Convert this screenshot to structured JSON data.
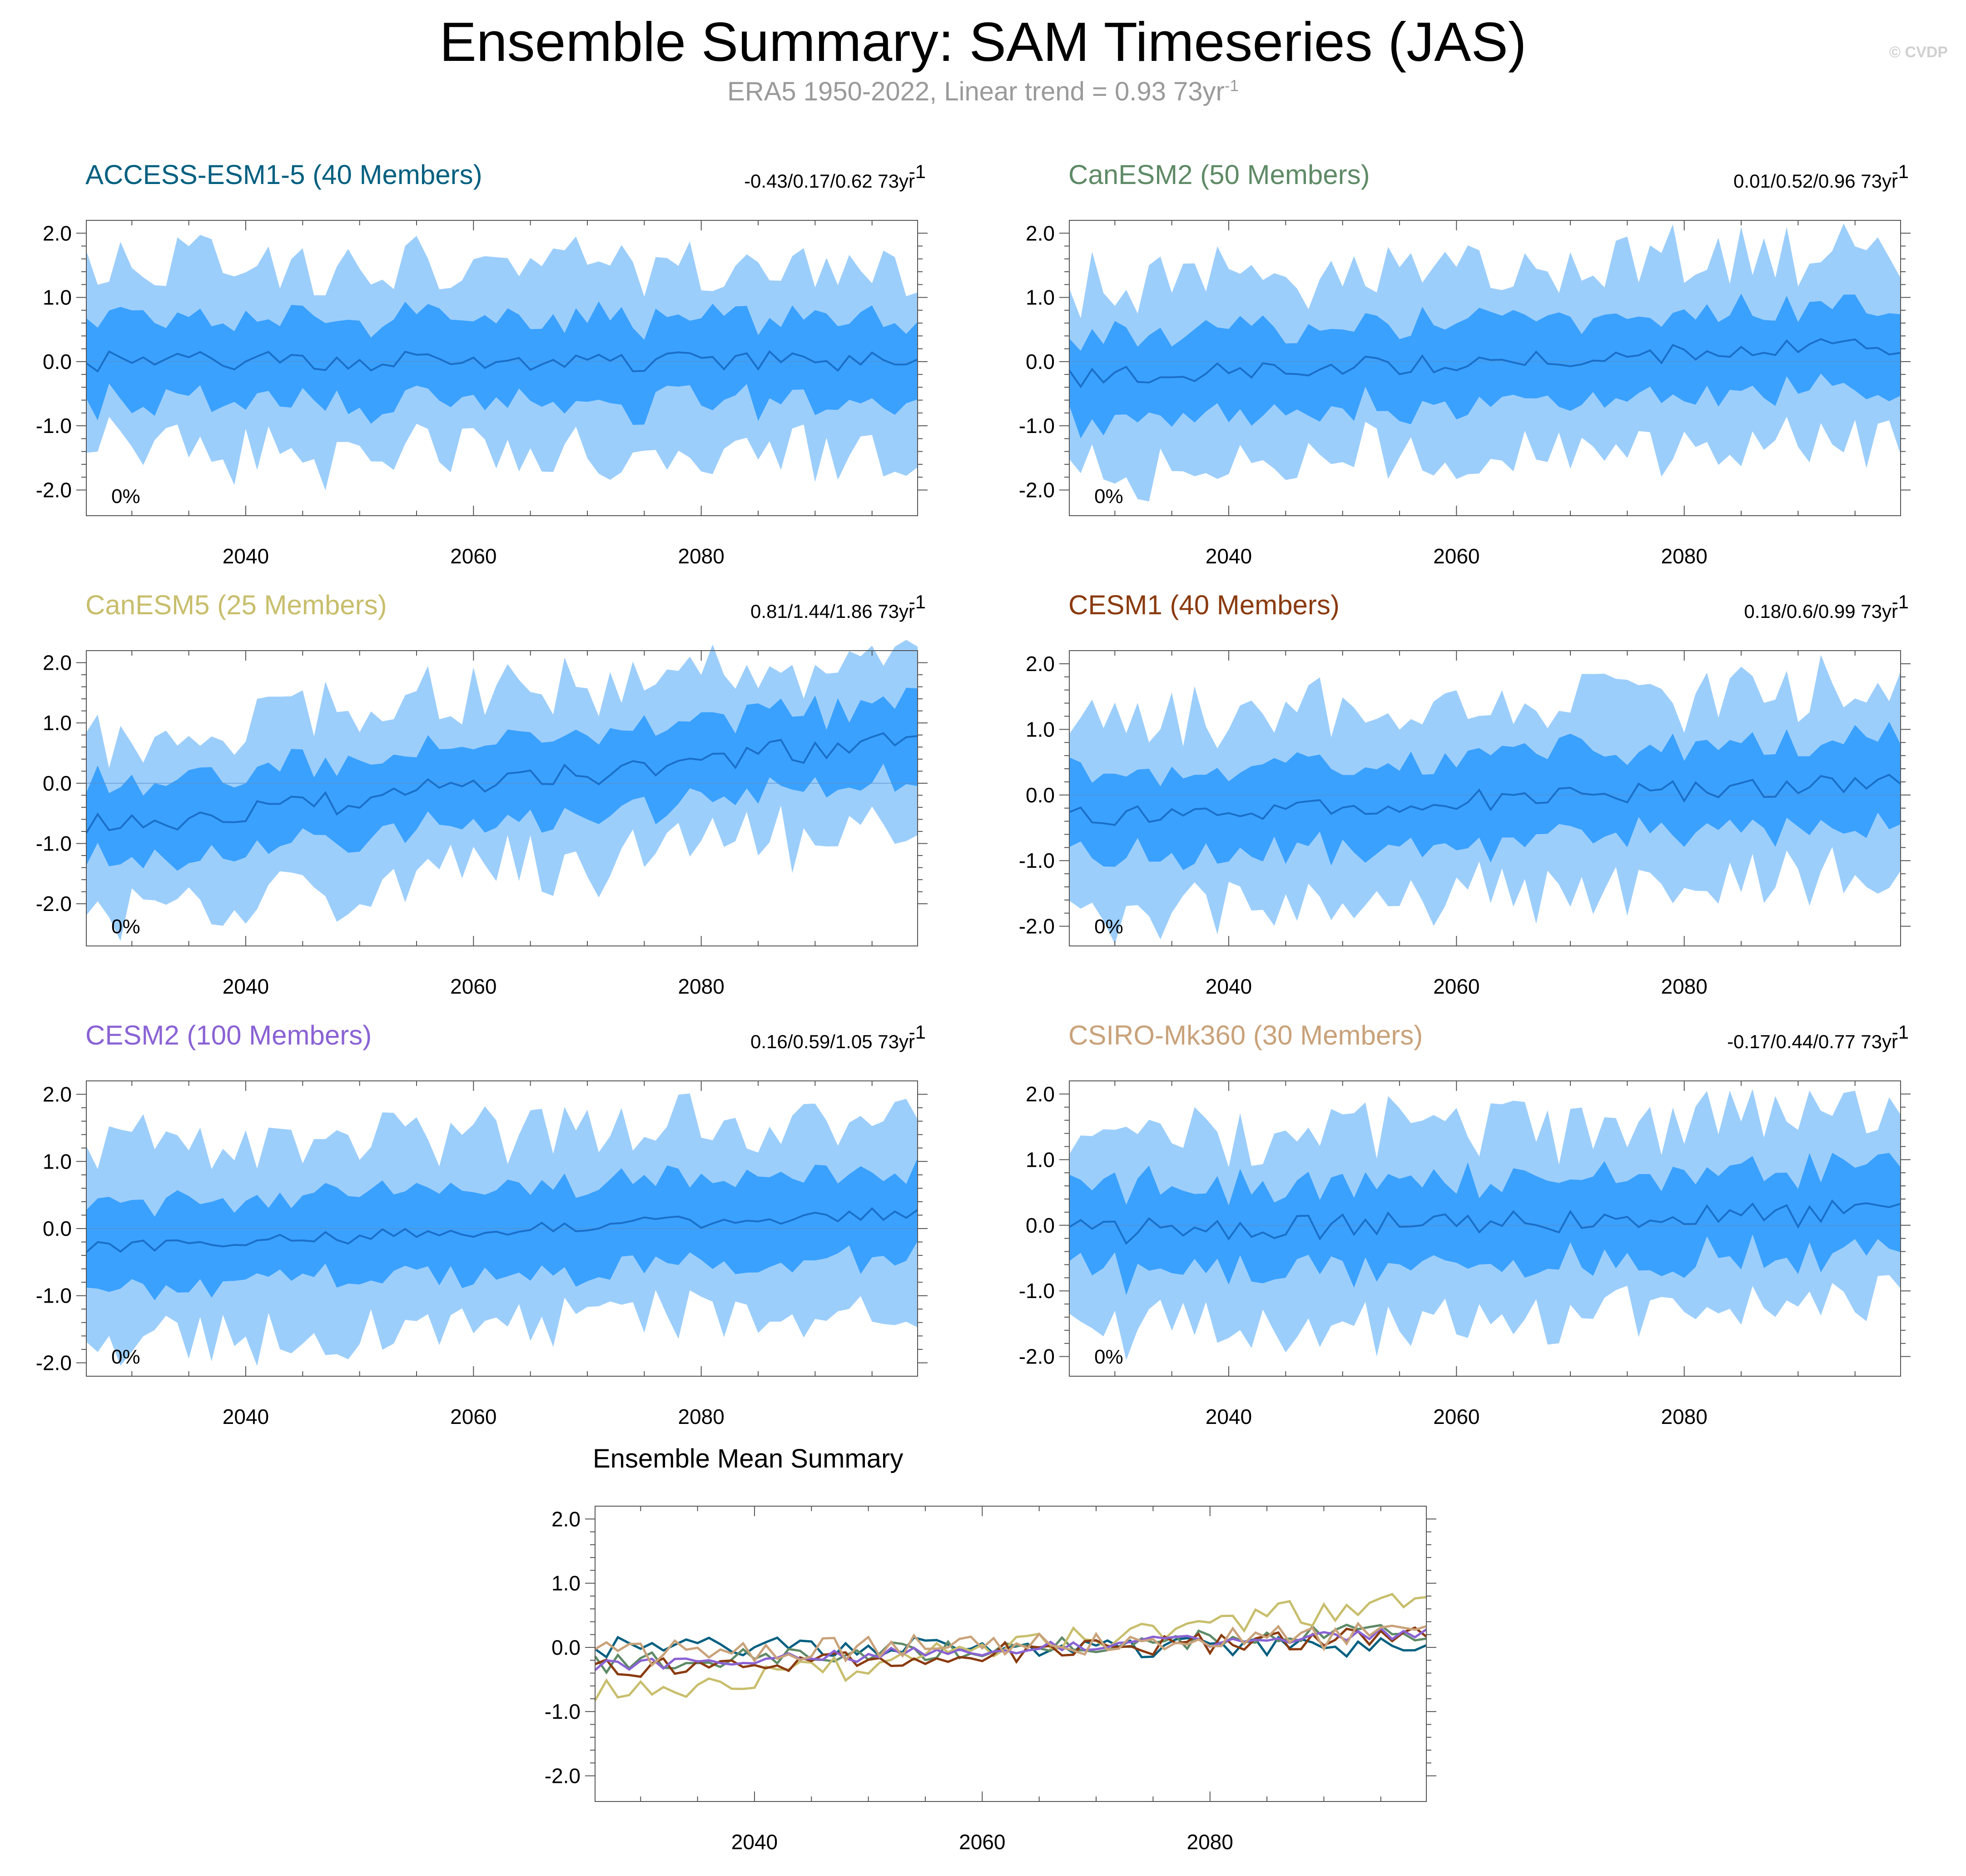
{
  "header": {
    "title": "Ensemble Summary: SAM Timeseries (JAS)",
    "subtitle_prefix": "ERA5 1950-2022, Linear trend = 0.93 73yr",
    "subtitle_sup": "-1",
    "credit": "© CVDP"
  },
  "chart_data": [
    {
      "type": "area",
      "title": "ACCESS-ESM1-5 (40 Members)",
      "title_color": "#005f80",
      "stats": "-0.43/0.17/0.62 73yr",
      "stats_sup": "-1",
      "pct_label": "0%",
      "xlim": [
        2026,
        2099
      ],
      "ylim": [
        -2.4,
        2.2
      ],
      "xticks": [
        2040,
        2060,
        2080
      ],
      "yticks": [
        2.0,
        1.0,
        0.0,
        -1.0,
        -2.0
      ],
      "ytick_labels": [
        "2.0",
        "1.0",
        "0.0",
        "-1.0",
        "-2.0"
      ],
      "start_year": 2026,
      "end_year": 2099,
      "mean_trend": [
        0.0,
        0.0
      ],
      "spread_inner": 0.62,
      "spread_outer": 1.45,
      "noise": 0.16,
      "colors": {
        "outer": "#9ccefc",
        "inner": "#3aa1ff",
        "mean": "#1a6fc8"
      },
      "seed": 1
    },
    {
      "type": "area",
      "title": "CanESM2 (50 Members)",
      "title_color": "#5e8a66",
      "stats": "0.01/0.52/0.96 73yr",
      "stats_sup": "-1",
      "pct_label": "0%",
      "xlim": [
        2026,
        2099
      ],
      "ylim": [
        -2.4,
        2.2
      ],
      "xticks": [
        2040,
        2060,
        2080
      ],
      "yticks": [
        2.0,
        1.0,
        0.0,
        -1.0,
        -2.0
      ],
      "ytick_labels": [
        "2.0",
        "1.0",
        "0.0",
        "-1.0",
        "-2.0"
      ],
      "start_year": 2026,
      "end_year": 2099,
      "mean_trend": [
        -0.25,
        0.25
      ],
      "spread_inner": 0.62,
      "spread_outer": 1.45,
      "noise": 0.15,
      "colors": {
        "outer": "#9ccefc",
        "inner": "#3aa1ff",
        "mean": "#1a6fc8"
      },
      "seed": 2
    },
    {
      "type": "area",
      "title": "CanESM5 (25 Members)",
      "title_color": "#c8be6c",
      "stats": "0.81/1.44/1.86 73yr",
      "stats_sup": "-1",
      "pct_label": "0%",
      "xlim": [
        2026,
        2099
      ],
      "ylim": [
        -2.7,
        2.2
      ],
      "xticks": [
        2040,
        2060,
        2080
      ],
      "yticks": [
        2.0,
        1.0,
        0.0,
        -1.0,
        -2.0
      ],
      "ytick_labels": [
        "2.0",
        "1.0",
        "0.0",
        "-1.0",
        "-2.0"
      ],
      "start_year": 2026,
      "end_year": 2099,
      "mean_trend": [
        -0.75,
        0.75
      ],
      "spread_inner": 0.62,
      "spread_outer": 1.45,
      "noise": 0.22,
      "colors": {
        "outer": "#9ccefc",
        "inner": "#3aa1ff",
        "mean": "#1a6fc8"
      },
      "seed": 3
    },
    {
      "type": "area",
      "title": "CESM1 (40 Members)",
      "title_color": "#8a3a0e",
      "stats": "0.18/0.6/0.99 73yr",
      "stats_sup": "-1",
      "pct_label": "0%",
      "xlim": [
        2026,
        2099
      ],
      "ylim": [
        -2.3,
        2.2
      ],
      "xticks": [
        2040,
        2060,
        2080
      ],
      "yticks": [
        2.0,
        1.0,
        0.0,
        -1.0,
        -2.0
      ],
      "ytick_labels": [
        "2.0",
        "1.0",
        "0.0",
        "-1.0",
        "-2.0"
      ],
      "start_year": 2026,
      "end_year": 2099,
      "mean_trend": [
        -0.35,
        0.2
      ],
      "spread_inner": 0.62,
      "spread_outer": 1.45,
      "noise": 0.16,
      "colors": {
        "outer": "#9ccefc",
        "inner": "#3aa1ff",
        "mean": "#1a6fc8"
      },
      "seed": 4
    },
    {
      "type": "area",
      "title": "CESM2 (100 Members)",
      "title_color": "#8a62d4",
      "stats": "0.16/0.59/1.05 73yr",
      "stats_sup": "-1",
      "pct_label": "0%",
      "xlim": [
        2026,
        2099
      ],
      "ylim": [
        -2.2,
        2.2
      ],
      "xticks": [
        2040,
        2060,
        2080
      ],
      "yticks": [
        2.0,
        1.0,
        0.0,
        -1.0,
        -2.0
      ],
      "ytick_labels": [
        "2.0",
        "1.0",
        "0.0",
        "-1.0",
        "-2.0"
      ],
      "start_year": 2026,
      "end_year": 2099,
      "mean_trend": [
        -0.3,
        0.25
      ],
      "spread_inner": 0.62,
      "spread_outer": 1.45,
      "noise": 0.1,
      "colors": {
        "outer": "#9ccefc",
        "inner": "#3aa1ff",
        "mean": "#1a6fc8"
      },
      "seed": 5
    },
    {
      "type": "area",
      "title": "CSIRO-Mk360 (30 Members)",
      "title_color": "#c9a27a",
      "stats": "-0.17/0.44/0.77 73yr",
      "stats_sup": "-1",
      "pct_label": "0%",
      "xlim": [
        2026,
        2099
      ],
      "ylim": [
        -2.3,
        2.2
      ],
      "xticks": [
        2040,
        2060,
        2080
      ],
      "yticks": [
        2.0,
        1.0,
        0.0,
        -1.0,
        -2.0
      ],
      "ytick_labels": [
        "2.0",
        "1.0",
        "0.0",
        "-1.0",
        "-2.0"
      ],
      "start_year": 2026,
      "end_year": 2099,
      "mean_trend": [
        -0.1,
        0.2
      ],
      "spread_inner": 0.62,
      "spread_outer": 1.45,
      "noise": 0.2,
      "colors": {
        "outer": "#9ccefc",
        "inner": "#3aa1ff",
        "mean": "#1a6fc8"
      },
      "seed": 6
    },
    {
      "type": "line",
      "title": "Ensemble Mean Summary",
      "xlim": [
        2026,
        2099
      ],
      "ylim": [
        -2.4,
        2.2
      ],
      "xticks": [
        2040,
        2060,
        2080
      ],
      "yticks": [
        2.0,
        1.0,
        0.0,
        -1.0,
        -2.0
      ],
      "ytick_labels": [
        "2.0",
        "1.0",
        "0.0",
        "-1.0",
        "-2.0"
      ],
      "start_year": 2026,
      "end_year": 2099,
      "series": [
        {
          "name": "ACCESS-ESM1-5",
          "color": "#005f80",
          "trend": [
            0.0,
            0.0
          ],
          "noise": 0.16,
          "seed": 1
        },
        {
          "name": "CanESM2",
          "color": "#5e8a66",
          "trend": [
            -0.25,
            0.25
          ],
          "noise": 0.15,
          "seed": 2
        },
        {
          "name": "CanESM5",
          "color": "#c8be6c",
          "trend": [
            -0.75,
            0.75
          ],
          "noise": 0.22,
          "seed": 3
        },
        {
          "name": "CESM1",
          "color": "#8a3a0e",
          "trend": [
            -0.35,
            0.2
          ],
          "noise": 0.16,
          "seed": 4
        },
        {
          "name": "CESM2",
          "color": "#8a62d4",
          "trend": [
            -0.3,
            0.25
          ],
          "noise": 0.1,
          "seed": 5
        },
        {
          "name": "CSIRO-Mk360",
          "color": "#c9a27a",
          "trend": [
            -0.1,
            0.2
          ],
          "noise": 0.2,
          "seed": 6
        }
      ]
    }
  ]
}
